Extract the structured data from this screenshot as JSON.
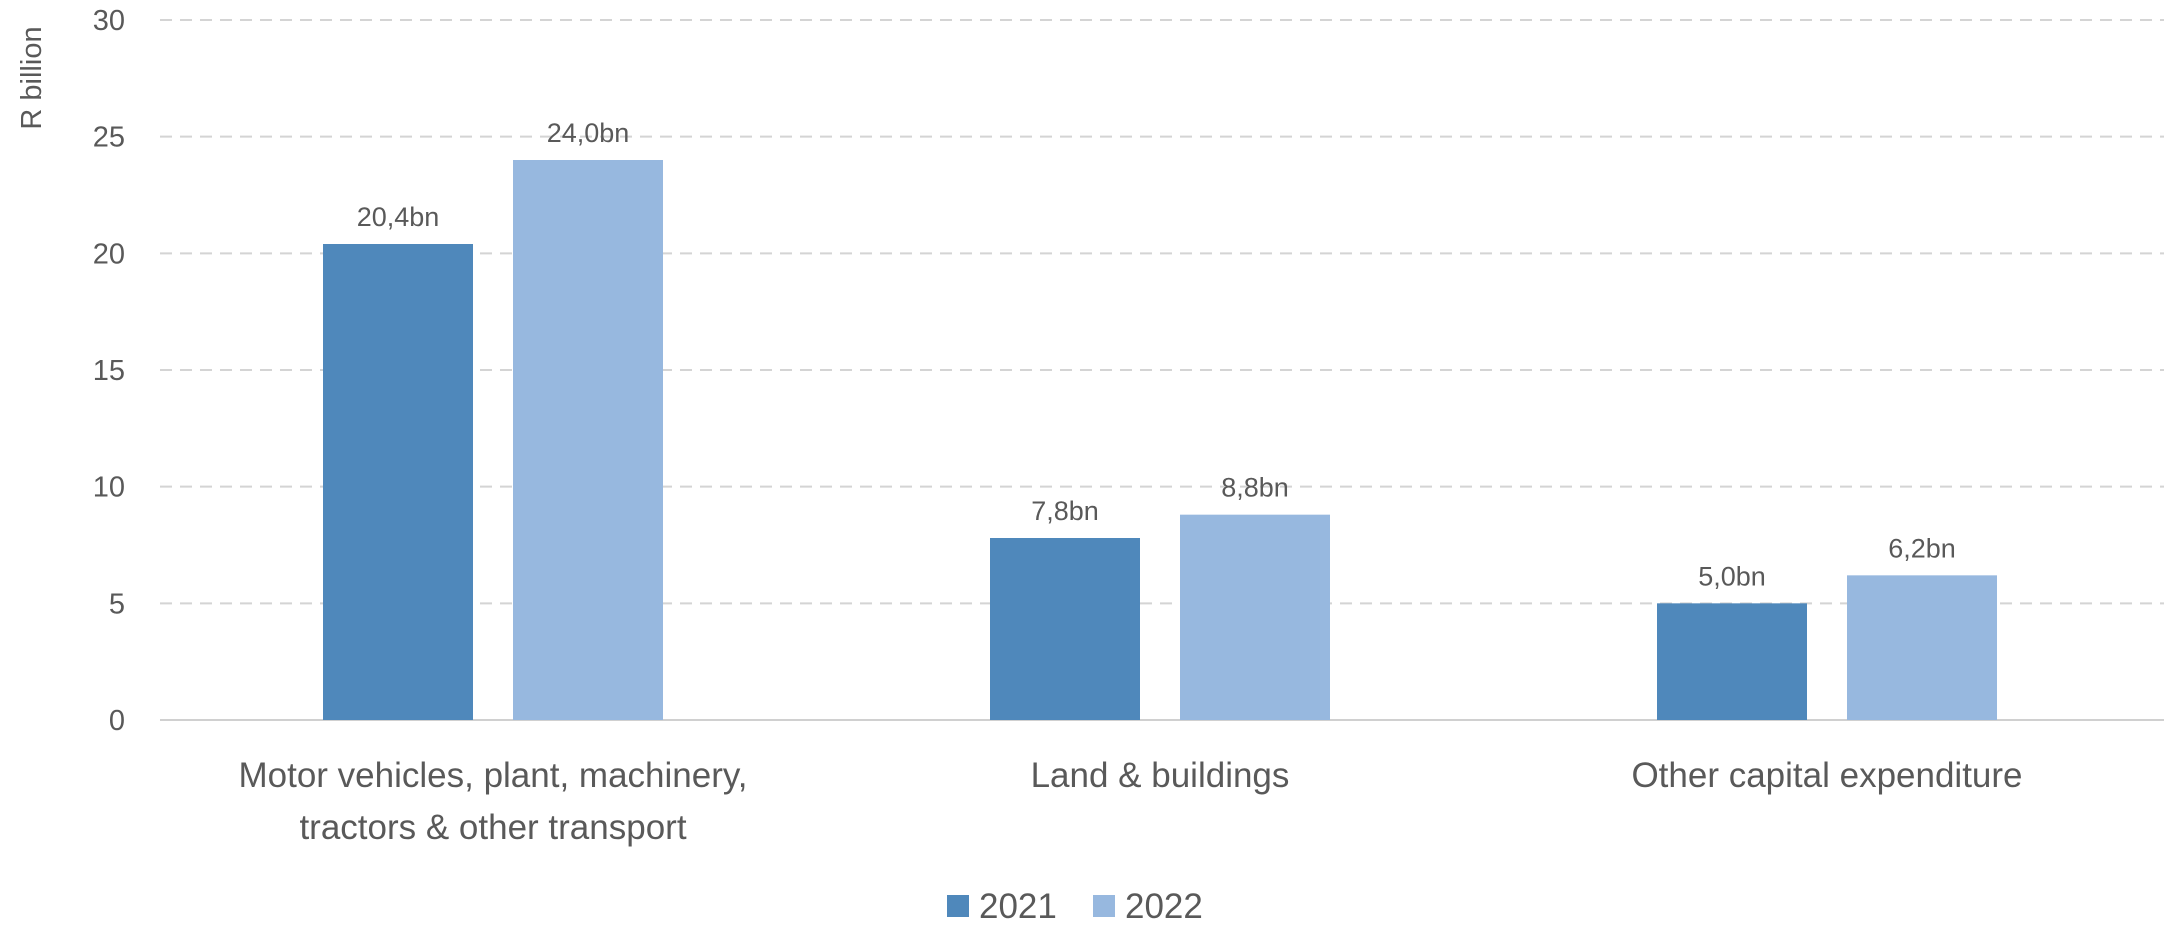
{
  "chart_data": {
    "type": "bar",
    "title": "",
    "xlabel": "",
    "ylabel": "R billion",
    "ylim": [
      0,
      30
    ],
    "yticks": [
      0,
      5,
      10,
      15,
      20,
      25,
      30
    ],
    "grid": true,
    "legend_position": "bottom",
    "categories": [
      [
        "Motor vehicles, plant, machinery,",
        "tractors & other transport"
      ],
      [
        "Land & buildings"
      ],
      [
        "Other capital expenditure"
      ]
    ],
    "series": [
      {
        "name": "2021",
        "color": "#4f88bb",
        "values": [
          20.4,
          7.8,
          5.0
        ],
        "labels": [
          "20,4bn",
          "7,8bn",
          "5,0bn"
        ]
      },
      {
        "name": "2022",
        "color": "#97b8df",
        "values": [
          24.0,
          8.8,
          6.2
        ],
        "labels": [
          "24,0bn",
          "8,8bn",
          "6,2bn"
        ]
      }
    ]
  }
}
